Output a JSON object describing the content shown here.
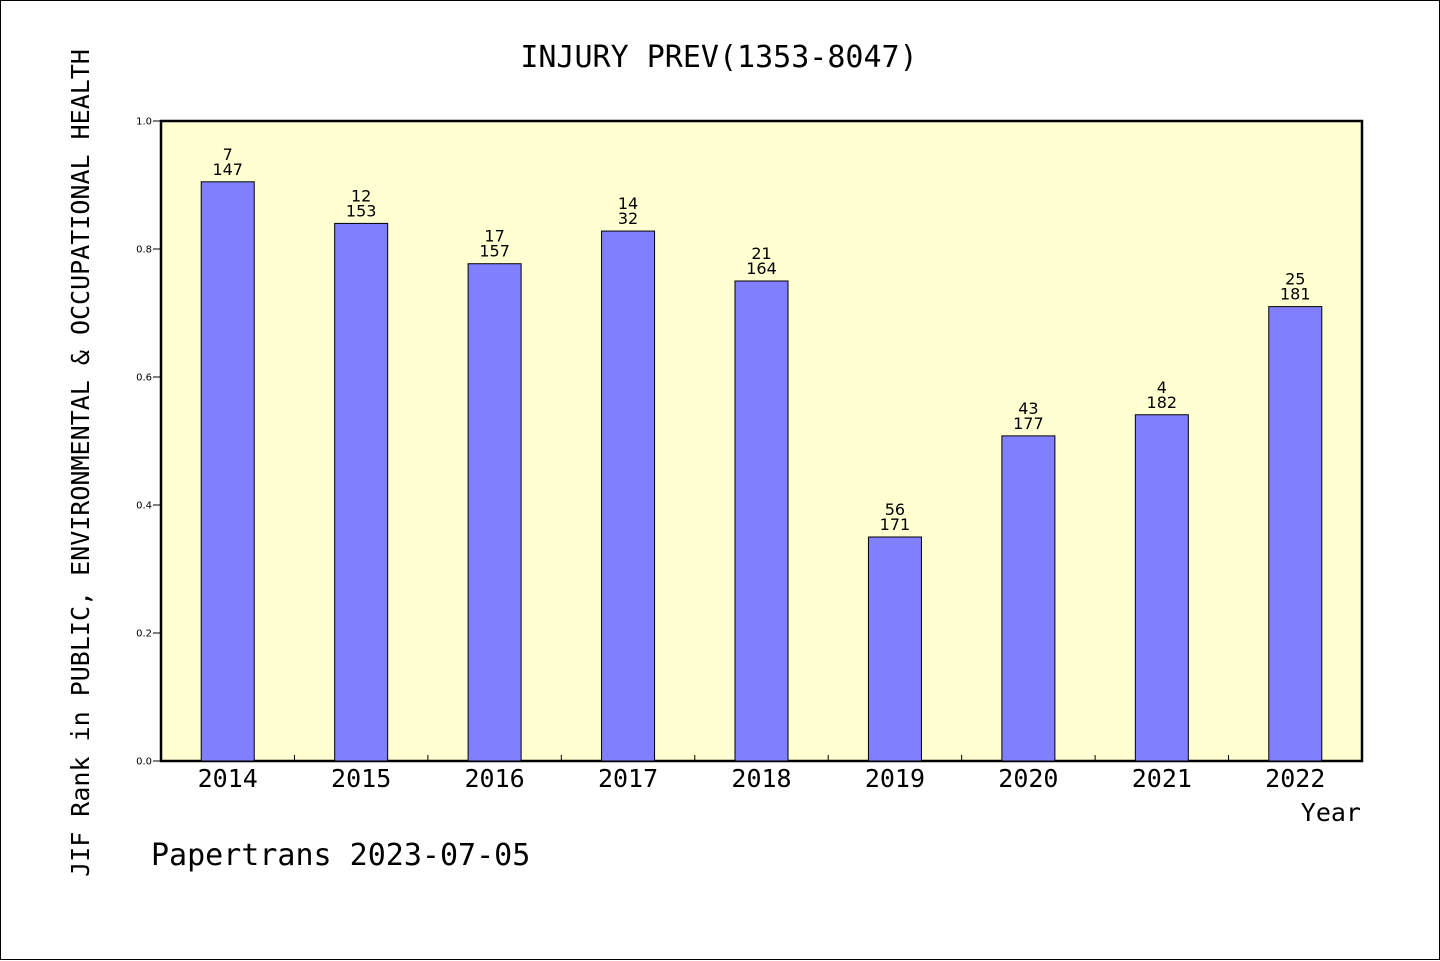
{
  "chart_data": {
    "type": "bar",
    "title": "INJURY PREV(1353-8047)",
    "xlabel": "Year",
    "ylabel": "JIF Rank in PUBLIC, ENVIRONMENTAL & OCCUPATIONAL HEALTH",
    "categories": [
      "2014",
      "2015",
      "2016",
      "2017",
      "2018",
      "2019",
      "2020",
      "2021",
      "2022"
    ],
    "values": [
      0.905,
      0.84,
      0.777,
      0.828,
      0.75,
      0.35,
      0.508,
      0.541,
      0.71
    ],
    "data_labels": [
      {
        "top": "7",
        "bottom": "147"
      },
      {
        "top": "12",
        "bottom": "153"
      },
      {
        "top": "17",
        "bottom": "157"
      },
      {
        "top": "14",
        "bottom": "32"
      },
      {
        "top": "21",
        "bottom": "164"
      },
      {
        "top": "56",
        "bottom": "171"
      },
      {
        "top": "43",
        "bottom": "177"
      },
      {
        "top": "4",
        "bottom": "182"
      },
      {
        "top": "25",
        "bottom": "181"
      }
    ],
    "ylim": [
      0,
      1.0
    ],
    "yticks": [
      "0.0",
      "0.2",
      "0.4",
      "0.6",
      "0.8",
      "1.0"
    ],
    "grid": false,
    "colors": {
      "bar": "#8080ff",
      "plot_background": "#ffffd2"
    }
  },
  "footer": "Papertrans 2023-07-05"
}
